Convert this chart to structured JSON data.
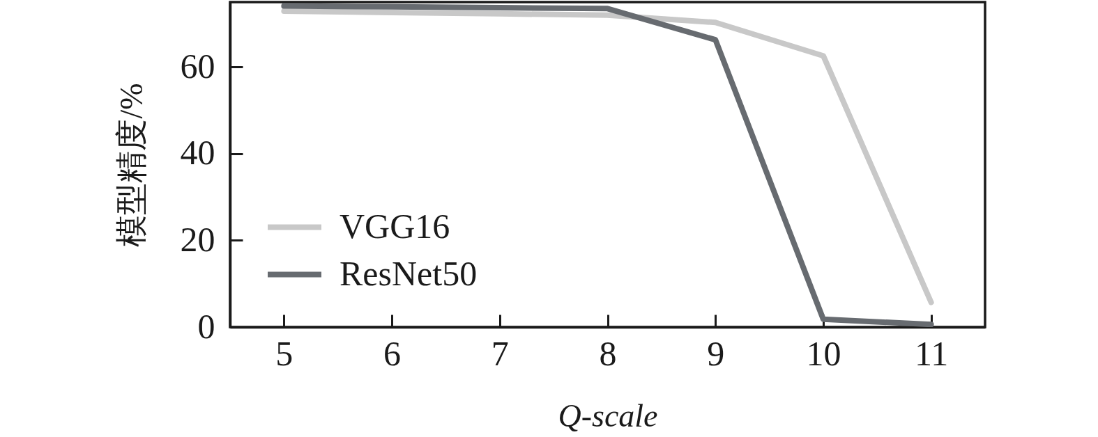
{
  "chart_data": {
    "type": "line",
    "xlabel": "Q-scale",
    "ylabel": "模型精度/%",
    "x": [
      5,
      6,
      7,
      8,
      9,
      10,
      11
    ],
    "series": [
      {
        "name": "VGG16",
        "color": "#c8c8c8",
        "values": [
          72.9,
          72.6,
          72.3,
          72.0,
          70.3,
          62.6,
          5.7
        ]
      },
      {
        "name": "ResNet50",
        "color": "#676b70",
        "values": [
          74.1,
          73.9,
          73.7,
          73.5,
          66.3,
          1.8,
          0.6
        ]
      }
    ],
    "xlim": [
      4.5,
      11.5
    ],
    "xticks": [
      5,
      6,
      7,
      8,
      9,
      10,
      11
    ],
    "ylim": [
      0,
      75
    ],
    "yticks": [
      0,
      20,
      40,
      60
    ],
    "legend": "bottom left"
  }
}
